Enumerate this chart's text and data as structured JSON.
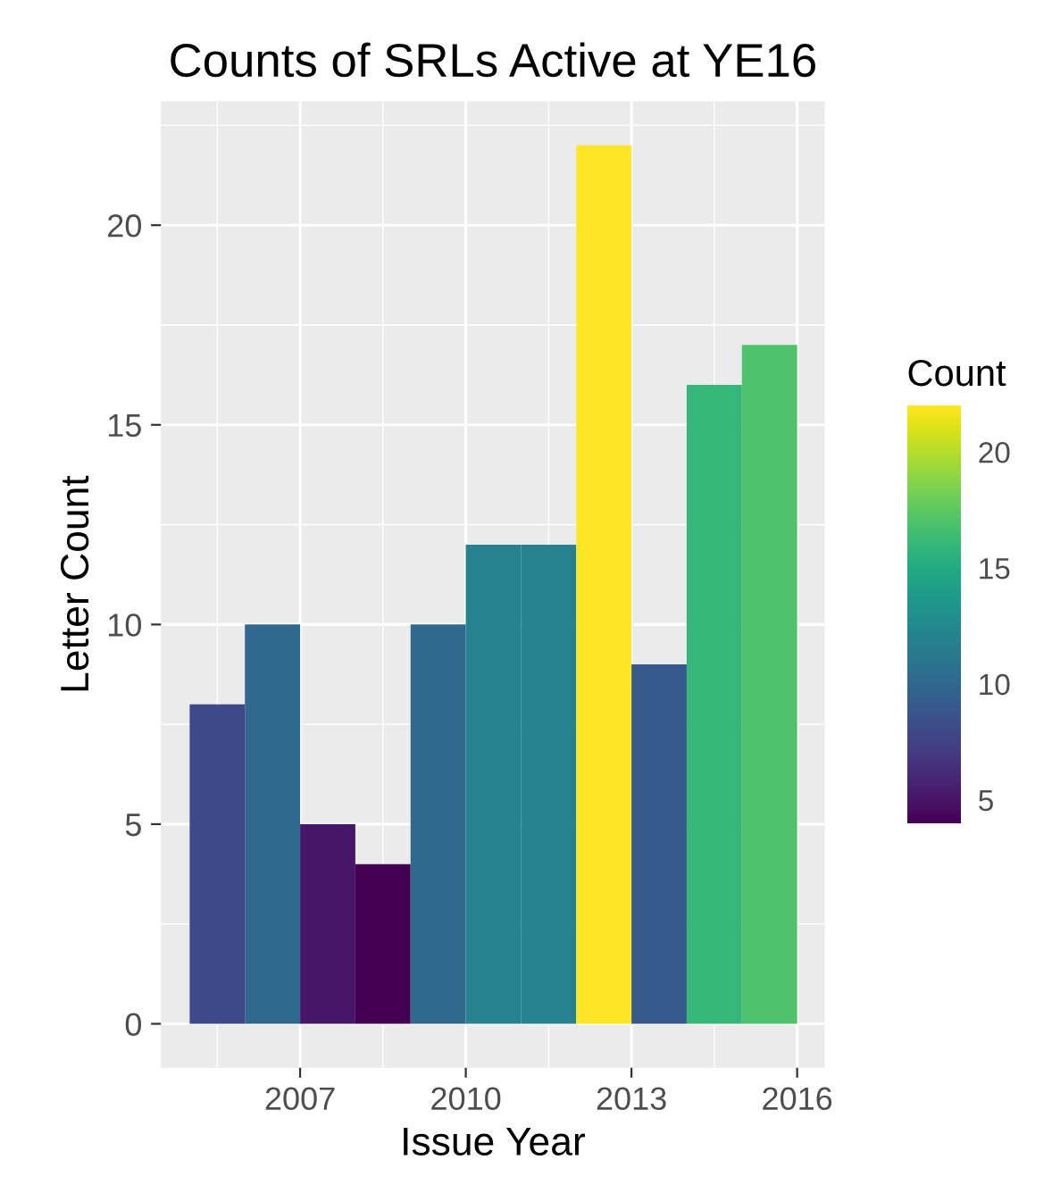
{
  "chart_data": {
    "type": "histogram",
    "title": "Counts of SRLs Active at YE16",
    "xlabel": "Issue Year",
    "ylabel": "Letter Count",
    "clabel": "Count",
    "bins": [
      2005,
      2006,
      2007,
      2008,
      2009,
      2010,
      2011,
      2012,
      2013,
      2014,
      2015,
      2016
    ],
    "values": [
      8,
      10,
      5,
      4,
      10,
      12,
      12,
      22,
      9,
      16,
      17
    ],
    "xlim": [
      2004.48,
      2016.5
    ],
    "xticks": [
      2007,
      2010,
      2013,
      2016
    ],
    "ylim": [
      -1.1,
      23.1
    ],
    "yticks": [
      0,
      5,
      10,
      15,
      20
    ],
    "clim": [
      4,
      22
    ],
    "cticks": [
      5,
      10,
      15,
      20
    ],
    "grid": true
  }
}
